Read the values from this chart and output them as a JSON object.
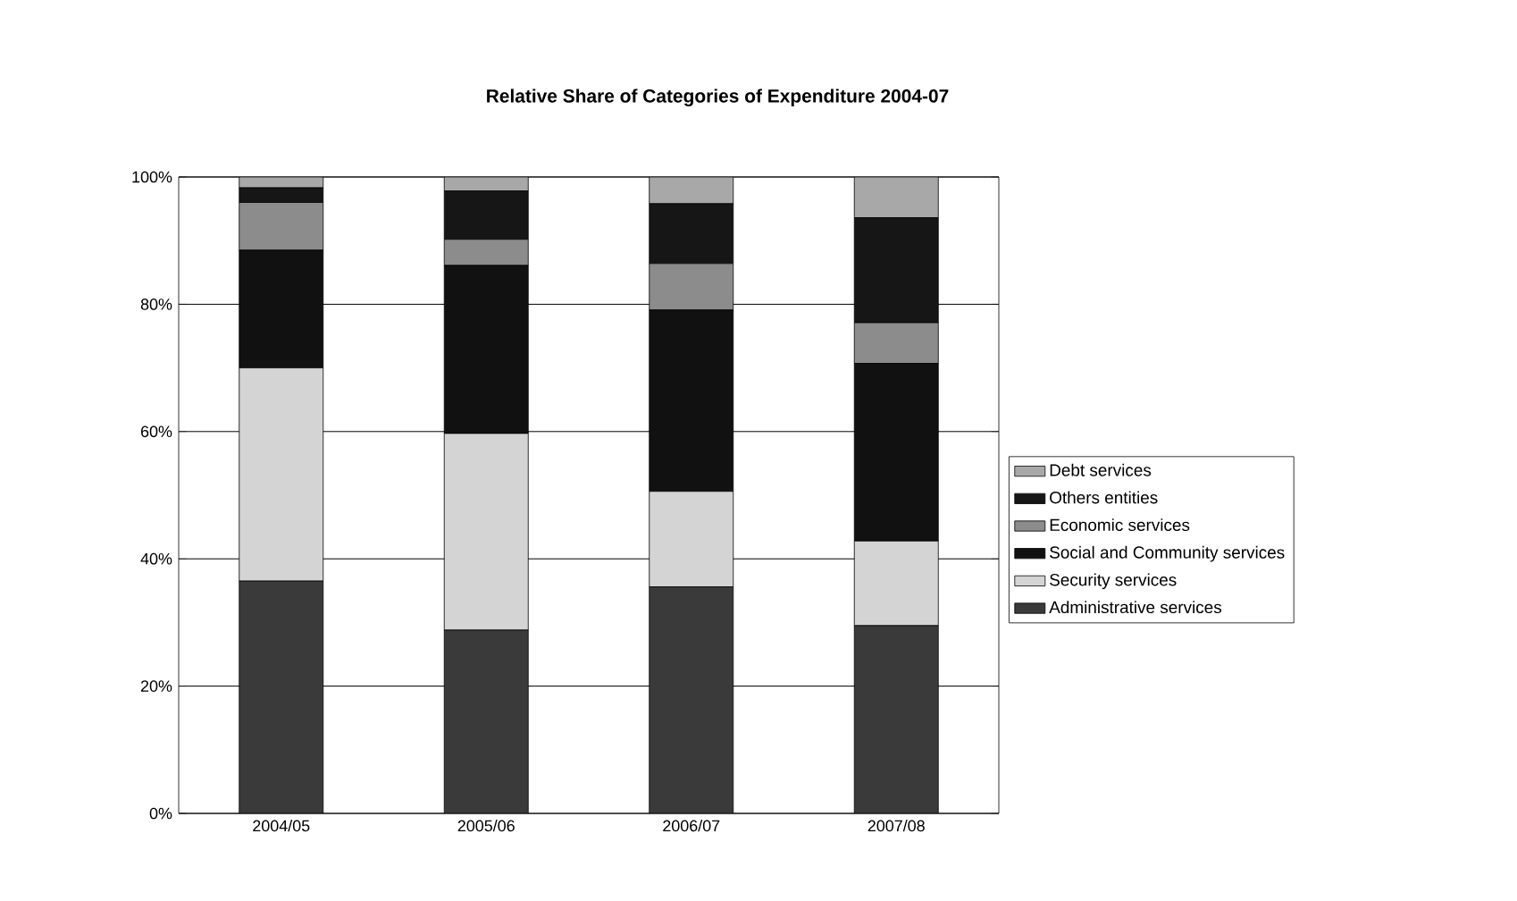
{
  "chart_data": {
    "type": "bar",
    "title": "Relative Share of Categories of Expenditure 2004-07",
    "categories": [
      "2004/05",
      "2005/06",
      "2006/07",
      "2007/08"
    ],
    "stacked": true,
    "series": [
      {
        "name": "Administrative services",
        "color": "#3a3a3a",
        "values": [
          36.5,
          28.8,
          35.6,
          29.5
        ]
      },
      {
        "name": "Security services",
        "color": "#d4d4d4",
        "values": [
          33.5,
          30.9,
          15.0,
          13.3
        ]
      },
      {
        "name": "Social and Community services",
        "color": "#111111",
        "values": [
          18.5,
          26.4,
          28.5,
          27.9
        ]
      },
      {
        "name": "Economic services",
        "color": "#8c8c8c",
        "values": [
          7.5,
          4.1,
          7.3,
          6.4
        ]
      },
      {
        "name": "Others entities",
        "color": "#161616",
        "values": [
          2.3,
          7.6,
          9.4,
          16.5
        ]
      },
      {
        "name": "Debt services",
        "color": "#a8a8a8",
        "values": [
          1.7,
          2.2,
          4.2,
          6.4
        ]
      }
    ],
    "ylim": [
      0,
      100
    ],
    "yticks": [
      {
        "value": 0,
        "label": "0%"
      },
      {
        "value": 20,
        "label": "20%"
      },
      {
        "value": 40,
        "label": "40%"
      },
      {
        "value": 60,
        "label": "60%"
      },
      {
        "value": 80,
        "label": "80%"
      },
      {
        "value": 100,
        "label": "100%"
      }
    ],
    "grid": "y",
    "legend": "right"
  }
}
